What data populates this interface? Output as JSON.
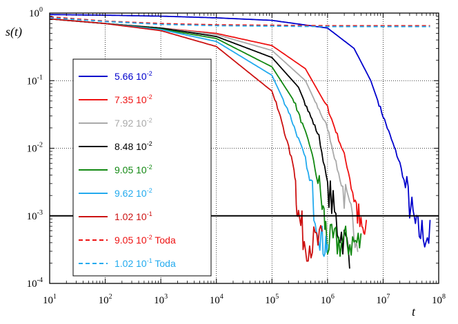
{
  "chart_data": {
    "type": "line",
    "title": "",
    "xlabel": "t",
    "ylabel": "s(t)",
    "xscale": "log",
    "yscale": "log",
    "xlim": [
      10,
      100000000
    ],
    "ylim": [
      0.0001,
      1
    ],
    "grid": true,
    "x_ticks": [
      {
        "base": "10",
        "exp": "1"
      },
      {
        "base": "10",
        "exp": "2"
      },
      {
        "base": "10",
        "exp": "3"
      },
      {
        "base": "10",
        "exp": "4"
      },
      {
        "base": "10",
        "exp": "5"
      },
      {
        "base": "10",
        "exp": "6"
      },
      {
        "base": "10",
        "exp": "7"
      },
      {
        "base": "10",
        "exp": "8"
      }
    ],
    "y_ticks": [
      {
        "base": "10",
        "exp": "-4"
      },
      {
        "base": "10",
        "exp": "-3"
      },
      {
        "base": "10",
        "exp": "-2"
      },
      {
        "base": "10",
        "exp": "-1"
      },
      {
        "base": "10",
        "exp": "0"
      }
    ],
    "reference_line": {
      "y": 0.001,
      "color": "#000000"
    },
    "legend_placement": "center-left",
    "series": [
      {
        "name": "5.66 10-2",
        "mantissa": "5.66 10",
        "exp": "-2",
        "suffix": "",
        "color": "#0000cc",
        "style": "solid",
        "points": [
          [
            10,
            0.95
          ],
          [
            100,
            0.93
          ],
          [
            1000,
            0.9
          ],
          [
            10000,
            0.85
          ],
          [
            100000,
            0.78
          ],
          [
            1000000,
            0.6
          ],
          [
            3000000,
            0.3
          ],
          [
            6000000,
            0.1
          ],
          [
            10000000,
            0.03
          ],
          [
            20000000,
            0.006
          ],
          [
            30000000,
            0.0015
          ],
          [
            40000000,
            0.0006
          ],
          [
            70000000,
            0.0005
          ]
        ]
      },
      {
        "name": "7.35 10-2",
        "mantissa": "7.35 10",
        "exp": "-2",
        "suffix": "",
        "color": "#ee1111",
        "style": "solid",
        "points": [
          [
            10,
            0.82
          ],
          [
            100,
            0.7
          ],
          [
            1000,
            0.6
          ],
          [
            10000,
            0.5
          ],
          [
            100000,
            0.33
          ],
          [
            400000,
            0.15
          ],
          [
            1000000,
            0.04
          ],
          [
            2000000,
            0.008
          ],
          [
            3000000,
            0.002
          ],
          [
            4000000,
            0.0006
          ],
          [
            5000000,
            0.0005
          ]
        ]
      },
      {
        "name": "7.92 10-2",
        "mantissa": "7.92 10",
        "exp": "-2",
        "suffix": "",
        "color": "#a9a9a9",
        "style": "solid",
        "points": [
          [
            10,
            0.82
          ],
          [
            100,
            0.7
          ],
          [
            1000,
            0.6
          ],
          [
            10000,
            0.48
          ],
          [
            100000,
            0.28
          ],
          [
            400000,
            0.1
          ],
          [
            1000000,
            0.02
          ],
          [
            1500000,
            0.005
          ],
          [
            2500000,
            0.001
          ],
          [
            3500000,
            0.0005
          ]
        ]
      },
      {
        "name": "8.48 10-2",
        "mantissa": "8.48 10",
        "exp": "-2",
        "suffix": "",
        "color": "#000000",
        "style": "solid",
        "points": [
          [
            10,
            0.82
          ],
          [
            100,
            0.7
          ],
          [
            1000,
            0.6
          ],
          [
            10000,
            0.45
          ],
          [
            100000,
            0.22
          ],
          [
            300000,
            0.08
          ],
          [
            700000,
            0.015
          ],
          [
            1000000,
            0.003
          ],
          [
            1500000,
            0.0007
          ],
          [
            2500000,
            0.0003
          ]
        ]
      },
      {
        "name": "9.05 10-2",
        "mantissa": "9.05 10",
        "exp": "-2",
        "suffix": "",
        "color": "#118811",
        "style": "solid",
        "points": [
          [
            10,
            0.82
          ],
          [
            100,
            0.7
          ],
          [
            1000,
            0.58
          ],
          [
            10000,
            0.42
          ],
          [
            100000,
            0.16
          ],
          [
            250000,
            0.05
          ],
          [
            500000,
            0.01
          ],
          [
            800000,
            0.0015
          ],
          [
            1000000,
            0.0004
          ],
          [
            4000000,
            0.0004
          ]
        ]
      },
      {
        "name": "9.62 10-2",
        "mantissa": "9.62 10",
        "exp": "-2",
        "suffix": "",
        "color": "#22aaee",
        "style": "solid",
        "points": [
          [
            10,
            0.82
          ],
          [
            100,
            0.7
          ],
          [
            1000,
            0.57
          ],
          [
            10000,
            0.38
          ],
          [
            100000,
            0.12
          ],
          [
            200000,
            0.035
          ],
          [
            400000,
            0.007
          ],
          [
            600000,
            0.0012
          ],
          [
            800000,
            0.0004
          ],
          [
            1000000,
            0.0004
          ]
        ]
      },
      {
        "name": "1.02 10-1",
        "mantissa": "1.02 10",
        "exp": "-1",
        "suffix": "",
        "color": "#cc1111",
        "style": "solid",
        "points": [
          [
            10,
            0.82
          ],
          [
            100,
            0.7
          ],
          [
            1000,
            0.55
          ],
          [
            10000,
            0.32
          ],
          [
            100000,
            0.07
          ],
          [
            150000,
            0.025
          ],
          [
            250000,
            0.005
          ],
          [
            300000,
            0.001
          ],
          [
            400000,
            0.0004
          ],
          [
            800000,
            0.0004
          ]
        ]
      },
      {
        "name": "9.05 10-2 Toda",
        "mantissa": "9.05 10",
        "exp": "-2",
        "suffix": "Toda",
        "color": "#ee1111",
        "style": "dashed",
        "points": [
          [
            10,
            0.88
          ],
          [
            100,
            0.76
          ],
          [
            1000,
            0.7
          ],
          [
            10000,
            0.67
          ],
          [
            100000,
            0.66
          ],
          [
            1000000,
            0.65
          ],
          [
            10000000,
            0.65
          ],
          [
            70000000,
            0.65
          ]
        ]
      },
      {
        "name": "1.02 10-1 Toda",
        "mantissa": "1.02 10",
        "exp": "-1",
        "suffix": "Toda",
        "color": "#22aaee",
        "style": "dashed",
        "points": [
          [
            10,
            0.85
          ],
          [
            100,
            0.75
          ],
          [
            1000,
            0.68
          ],
          [
            10000,
            0.65
          ],
          [
            100000,
            0.64
          ],
          [
            1000000,
            0.63
          ],
          [
            10000000,
            0.63
          ],
          [
            70000000,
            0.63
          ]
        ]
      }
    ]
  }
}
